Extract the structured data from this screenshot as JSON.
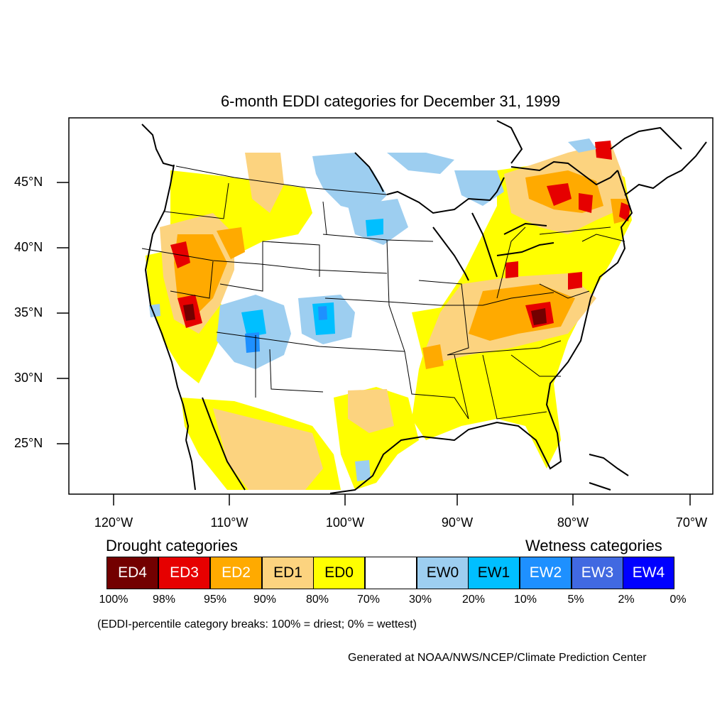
{
  "title": "6-month EDDI categories for December 31, 1999",
  "lat_labels": [
    "45°N",
    "40°N",
    "35°N",
    "30°N",
    "25°N"
  ],
  "lon_labels": [
    "120°W",
    "110°W",
    "100°W",
    "90°W",
    "80°W",
    "70°W"
  ],
  "legend": {
    "drought_heading": "Drought categories",
    "wetness_heading": "Wetness categories",
    "categories": [
      {
        "label": "ED4",
        "color": "#730000",
        "text_color": "#ffffff"
      },
      {
        "label": "ED3",
        "color": "#e60000",
        "text_color": "#ffffff"
      },
      {
        "label": "ED2",
        "color": "#ffaa00",
        "text_color": "#ffffff"
      },
      {
        "label": "ED1",
        "color": "#fcd37f",
        "text_color": "#000000"
      },
      {
        "label": "ED0",
        "color": "#ffff00",
        "text_color": "#000000"
      },
      {
        "label": "",
        "color": "#ffffff",
        "text_color": "#000000"
      },
      {
        "label": "EW0",
        "color": "#9dcef0",
        "text_color": "#000000"
      },
      {
        "label": "EW1",
        "color": "#00bfff",
        "text_color": "#000000"
      },
      {
        "label": "EW2",
        "color": "#1e90ff",
        "text_color": "#ffffff"
      },
      {
        "label": "EW3",
        "color": "#4169e1",
        "text_color": "#ffffff"
      },
      {
        "label": "EW4",
        "color": "#0000ff",
        "text_color": "#ffffff"
      }
    ],
    "percentiles": [
      "100%",
      "98%",
      "95%",
      "90%",
      "80%",
      "70%",
      "30%",
      "20%",
      "10%",
      "5%",
      "2%",
      "0%"
    ]
  },
  "note": "(EDDI-percentile category breaks: 100% = driest; 0% = wettest)",
  "credit": "Generated at NOAA/NWS/NCEP/Climate Prediction Center"
}
